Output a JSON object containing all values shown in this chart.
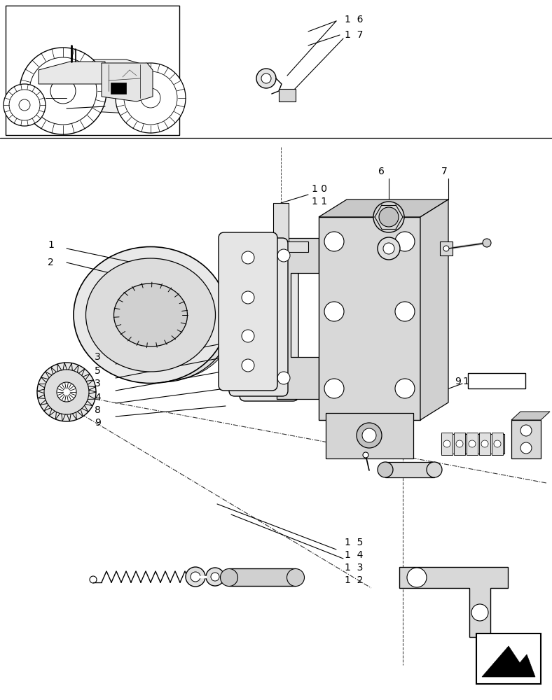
{
  "bg_color": "#ffffff",
  "line_color": "#000000",
  "gray_fill": "#d8d8d8",
  "light_gray": "#eeeeee",
  "mid_gray": "#c8c8c8"
}
